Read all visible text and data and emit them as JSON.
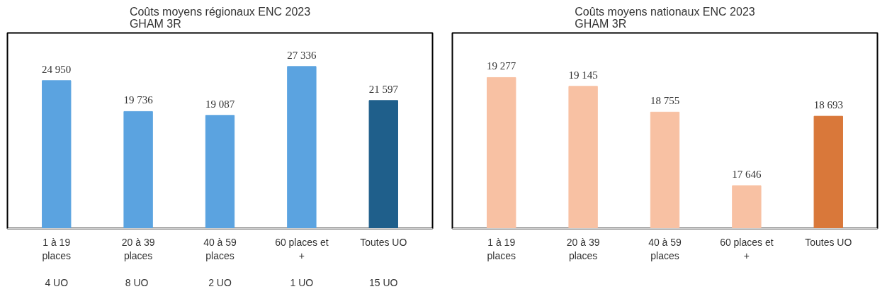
{
  "chart_data": [
    {
      "type": "bar",
      "title": "Coûts moyens régionaux ENC 2023\nGHAM 3R",
      "categories": [
        "1 à 19\nplaces\n\n4 UO",
        "20 à 39\nplaces\n\n8  UO",
        "40 à 59\nplaces\n\n2 UO",
        "60 places et\n+\n\n1 UO",
        "Toutes UO\n\n\n15 UO"
      ],
      "values": [
        24950,
        19736,
        19087,
        27336,
        21597
      ],
      "value_labels": [
        "24 950",
        "19 736",
        "19 087",
        "27 336",
        "21 597"
      ],
      "colors": [
        "#5ba3e0",
        "#5ba3e0",
        "#5ba3e0",
        "#5ba3e0",
        "#1f5f8b"
      ],
      "ylim": [
        0,
        33000
      ],
      "tick_labels": "x",
      "grid": false
    },
    {
      "type": "bar",
      "title": "Coûts moyens nationaux ENC 2023\nGHAM 3R",
      "categories": [
        "1 à 19\nplaces",
        "20 à 39\nplaces",
        "40 à 59\nplaces",
        "60 places et\n+",
        "Toutes UO"
      ],
      "values": [
        19277,
        19145,
        18755,
        17646,
        18693
      ],
      "value_labels": [
        "19 277",
        "19 145",
        "18 755",
        "17 646",
        "18 693"
      ],
      "colors": [
        "#f8c1a3",
        "#f8c1a3",
        "#f8c1a3",
        "#f8c1a3",
        "#d9783a"
      ],
      "ylim": [
        17000,
        19950
      ],
      "tick_labels": "x",
      "grid": false
    }
  ]
}
